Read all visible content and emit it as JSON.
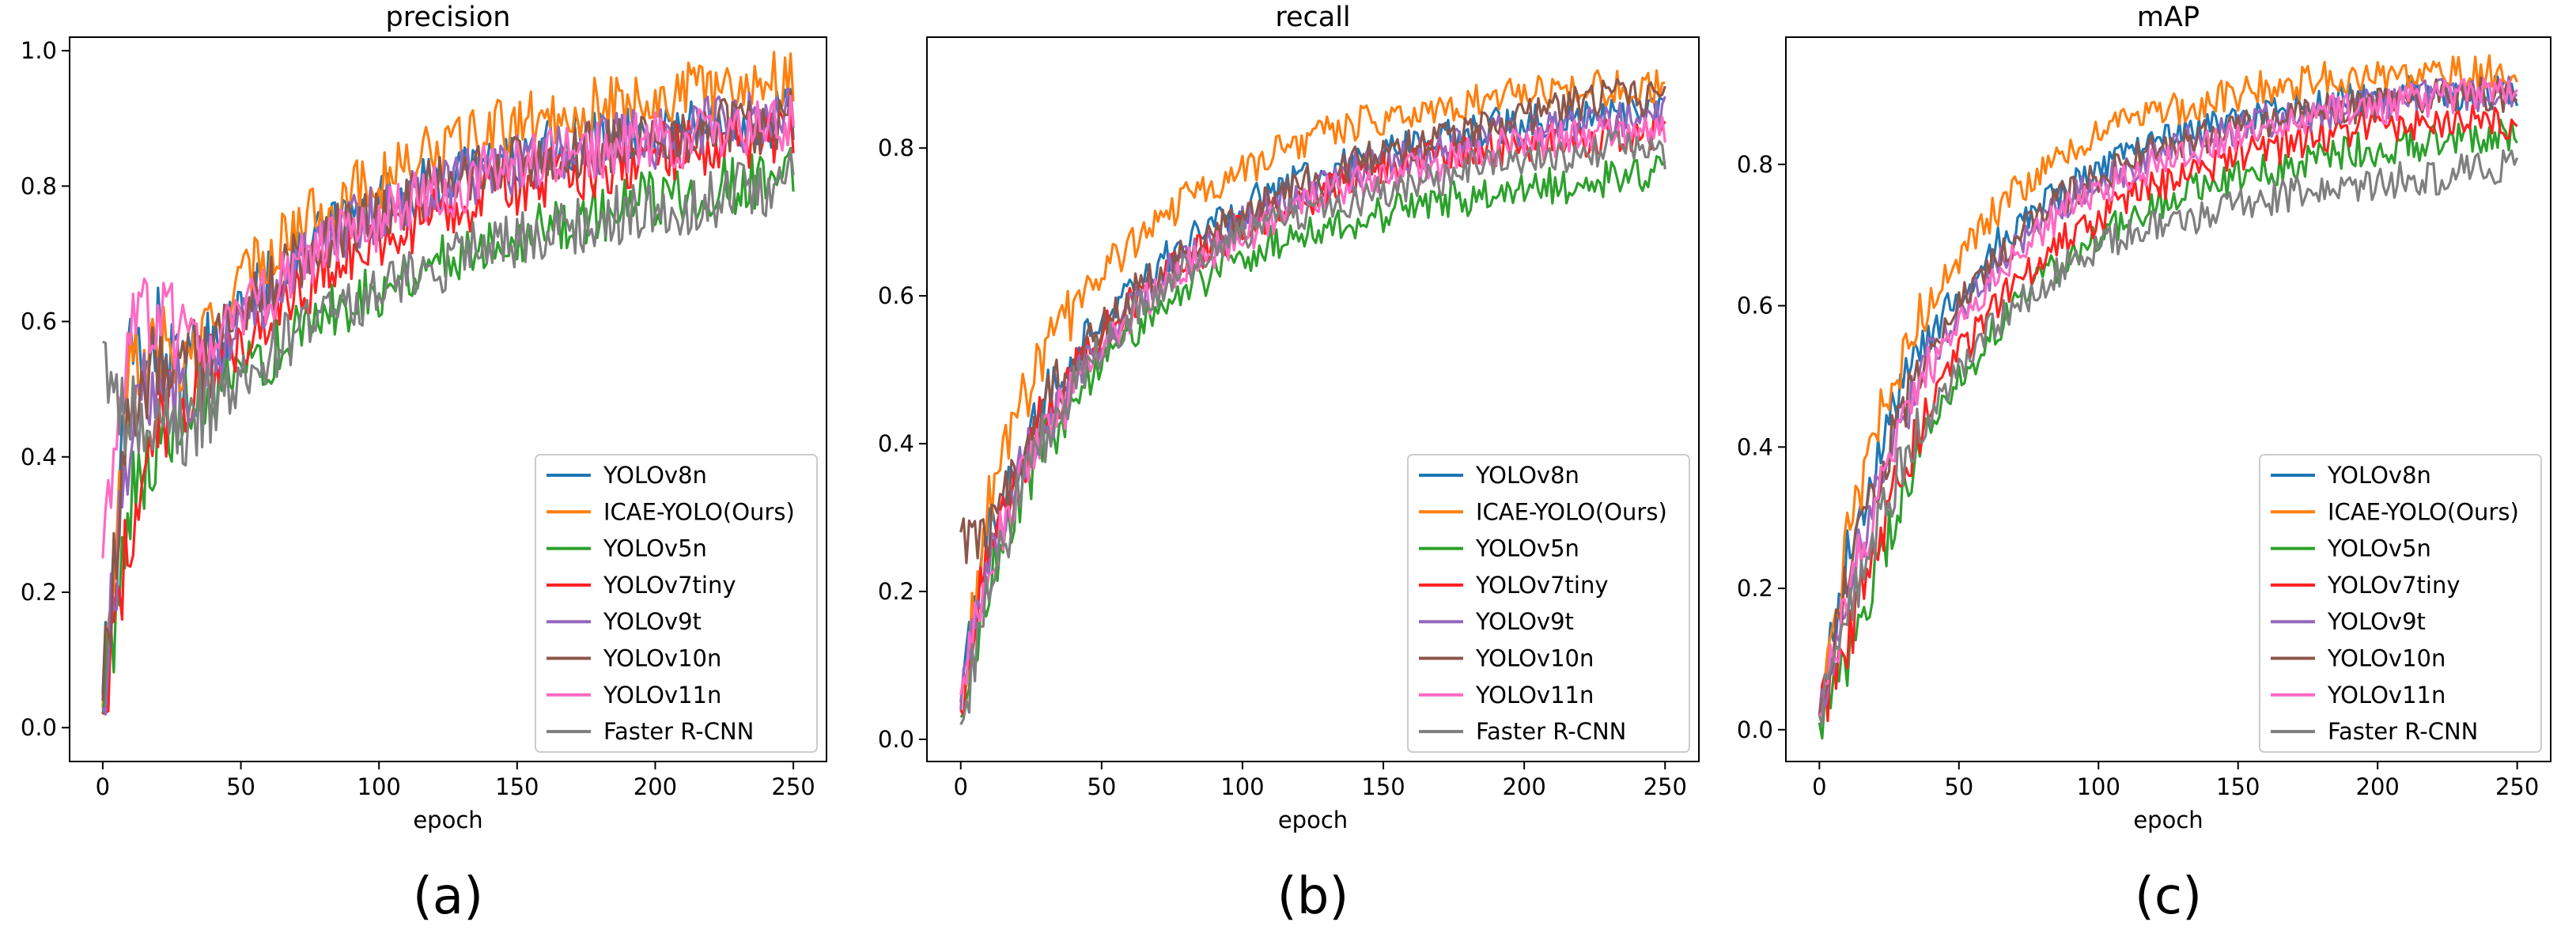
{
  "figure": {
    "series_styles": [
      {
        "name": "YOLOv8n",
        "color": "#1f77b4"
      },
      {
        "name": "ICAE-YOLO(Ours)",
        "color": "#ff7f0e"
      },
      {
        "name": "YOLOv5n",
        "color": "#2ca02c"
      },
      {
        "name": "YOLOv7tiny",
        "color": "#ff2020"
      },
      {
        "name": "YOLOv9t",
        "color": "#9467bd"
      },
      {
        "name": "YOLOv10n",
        "color": "#8c564b"
      },
      {
        "name": "YOLOv11n",
        "color": "#ff69c4"
      },
      {
        "name": "Faster R-CNN",
        "color": "#7f7f7f"
      }
    ]
  },
  "chart_data": [
    {
      "type": "line",
      "panel_label": "(a)",
      "title": "precision",
      "xlabel": "epoch",
      "ylabel": "",
      "xlim": [
        -12,
        262
      ],
      "ylim": [
        -0.05,
        1.02
      ],
      "xticks": [
        0,
        50,
        100,
        150,
        200,
        250
      ],
      "xtick_labels": [
        "0",
        "50",
        "100",
        "150",
        "200",
        "250"
      ],
      "yticks": [
        0.0,
        0.2,
        0.4,
        0.6,
        0.8,
        1.0
      ],
      "ytick_labels": [
        "0.0",
        "0.2",
        "0.4",
        "0.6",
        "0.8",
        "1.0"
      ],
      "legend": "lower-right",
      "x": [
        0,
        10,
        20,
        30,
        40,
        50,
        60,
        70,
        80,
        90,
        100,
        110,
        120,
        130,
        140,
        150,
        160,
        170,
        180,
        190,
        200,
        210,
        220,
        230,
        240,
        250
      ],
      "series": [
        {
          "name": "YOLOv8n",
          "values": [
            0.05,
            0.55,
            0.58,
            0.52,
            0.55,
            0.62,
            0.66,
            0.7,
            0.73,
            0.75,
            0.77,
            0.79,
            0.8,
            0.82,
            0.83,
            0.84,
            0.85,
            0.86,
            0.87,
            0.87,
            0.88,
            0.89,
            0.89,
            0.9,
            0.9,
            0.91
          ]
        },
        {
          "name": "ICAE-YOLO(Ours)",
          "values": [
            0.03,
            0.52,
            0.56,
            0.53,
            0.58,
            0.66,
            0.7,
            0.74,
            0.77,
            0.79,
            0.81,
            0.83,
            0.85,
            0.86,
            0.88,
            0.89,
            0.9,
            0.91,
            0.92,
            0.92,
            0.93,
            0.94,
            0.94,
            0.95,
            0.96,
            0.96
          ]
        },
        {
          "name": "YOLOv5n",
          "values": [
            0.02,
            0.35,
            0.42,
            0.45,
            0.48,
            0.52,
            0.55,
            0.58,
            0.61,
            0.63,
            0.65,
            0.67,
            0.69,
            0.7,
            0.72,
            0.73,
            0.74,
            0.75,
            0.76,
            0.77,
            0.78,
            0.79,
            0.8,
            0.8,
            0.81,
            0.82
          ]
        },
        {
          "name": "YOLOv7tiny",
          "values": [
            0.02,
            0.3,
            0.45,
            0.48,
            0.52,
            0.57,
            0.61,
            0.64,
            0.67,
            0.7,
            0.72,
            0.74,
            0.76,
            0.77,
            0.79,
            0.8,
            0.81,
            0.82,
            0.83,
            0.84,
            0.85,
            0.85,
            0.86,
            0.86,
            0.87,
            0.87
          ]
        },
        {
          "name": "YOLOv9t",
          "values": [
            0.03,
            0.45,
            0.52,
            0.5,
            0.54,
            0.6,
            0.64,
            0.68,
            0.71,
            0.74,
            0.76,
            0.78,
            0.79,
            0.81,
            0.82,
            0.83,
            0.84,
            0.85,
            0.86,
            0.87,
            0.87,
            0.88,
            0.89,
            0.89,
            0.9,
            0.9
          ]
        },
        {
          "name": "YOLOv10n",
          "values": [
            0.04,
            0.48,
            0.55,
            0.52,
            0.56,
            0.61,
            0.65,
            0.69,
            0.72,
            0.74,
            0.76,
            0.78,
            0.8,
            0.81,
            0.82,
            0.83,
            0.84,
            0.85,
            0.86,
            0.86,
            0.87,
            0.88,
            0.88,
            0.89,
            0.89,
            0.9
          ]
        },
        {
          "name": "YOLOv11n",
          "values": [
            0.25,
            0.6,
            0.62,
            0.55,
            0.57,
            0.61,
            0.64,
            0.68,
            0.71,
            0.73,
            0.75,
            0.77,
            0.79,
            0.8,
            0.82,
            0.83,
            0.84,
            0.85,
            0.85,
            0.86,
            0.87,
            0.87,
            0.88,
            0.88,
            0.89,
            0.89
          ]
        },
        {
          "name": "Faster R-CNN",
          "values": [
            0.57,
            0.45,
            0.42,
            0.45,
            0.48,
            0.52,
            0.55,
            0.58,
            0.61,
            0.63,
            0.65,
            0.67,
            0.68,
            0.7,
            0.71,
            0.72,
            0.73,
            0.74,
            0.75,
            0.76,
            0.77,
            0.77,
            0.78,
            0.79,
            0.8,
            0.81
          ]
        }
      ]
    },
    {
      "type": "line",
      "panel_label": "(b)",
      "title": "recall",
      "xlabel": "epoch",
      "ylabel": "",
      "xlim": [
        -12,
        262
      ],
      "ylim": [
        -0.03,
        0.95
      ],
      "xticks": [
        0,
        50,
        100,
        150,
        200,
        250
      ],
      "xtick_labels": [
        "0",
        "50",
        "100",
        "150",
        "200",
        "250"
      ],
      "yticks": [
        0.0,
        0.2,
        0.4,
        0.6,
        0.8
      ],
      "ytick_labels": [
        "0.0",
        "0.2",
        "0.4",
        "0.6",
        "0.8"
      ],
      "legend": "lower-right",
      "x": [
        0,
        10,
        20,
        30,
        40,
        50,
        60,
        70,
        80,
        90,
        100,
        110,
        120,
        130,
        140,
        150,
        160,
        170,
        180,
        190,
        200,
        210,
        220,
        230,
        240,
        250
      ],
      "series": [
        {
          "name": "YOLOv8n",
          "values": [
            0.05,
            0.28,
            0.38,
            0.46,
            0.52,
            0.57,
            0.61,
            0.64,
            0.67,
            0.7,
            0.72,
            0.74,
            0.76,
            0.77,
            0.78,
            0.79,
            0.8,
            0.81,
            0.82,
            0.83,
            0.83,
            0.84,
            0.84,
            0.85,
            0.85,
            0.86
          ]
        },
        {
          "name": "ICAE-YOLO(Ours)",
          "values": [
            0.05,
            0.32,
            0.44,
            0.52,
            0.58,
            0.63,
            0.67,
            0.7,
            0.73,
            0.75,
            0.77,
            0.79,
            0.81,
            0.82,
            0.83,
            0.84,
            0.85,
            0.86,
            0.86,
            0.87,
            0.87,
            0.88,
            0.88,
            0.88,
            0.88,
            0.88
          ]
        },
        {
          "name": "YOLOv5n",
          "values": [
            0.03,
            0.22,
            0.32,
            0.4,
            0.46,
            0.51,
            0.55,
            0.58,
            0.61,
            0.63,
            0.65,
            0.67,
            0.68,
            0.69,
            0.7,
            0.71,
            0.72,
            0.73,
            0.73,
            0.74,
            0.74,
            0.75,
            0.75,
            0.76,
            0.76,
            0.77
          ]
        },
        {
          "name": "YOLOv7tiny",
          "values": [
            0.04,
            0.26,
            0.36,
            0.44,
            0.5,
            0.55,
            0.59,
            0.62,
            0.65,
            0.67,
            0.69,
            0.71,
            0.73,
            0.74,
            0.76,
            0.77,
            0.78,
            0.79,
            0.79,
            0.8,
            0.8,
            0.81,
            0.81,
            0.82,
            0.82,
            0.82
          ]
        },
        {
          "name": "YOLOv9t",
          "values": [
            0.04,
            0.25,
            0.35,
            0.43,
            0.49,
            0.54,
            0.58,
            0.62,
            0.65,
            0.67,
            0.7,
            0.72,
            0.74,
            0.75,
            0.77,
            0.78,
            0.79,
            0.8,
            0.81,
            0.82,
            0.82,
            0.83,
            0.83,
            0.84,
            0.84,
            0.85
          ]
        },
        {
          "name": "YOLOv10n",
          "values": [
            0.28,
            0.27,
            0.37,
            0.45,
            0.51,
            0.56,
            0.6,
            0.63,
            0.66,
            0.69,
            0.71,
            0.73,
            0.75,
            0.76,
            0.78,
            0.79,
            0.8,
            0.81,
            0.82,
            0.83,
            0.84,
            0.85,
            0.86,
            0.87,
            0.87,
            0.86
          ]
        },
        {
          "name": "YOLOv11n",
          "values": [
            0.06,
            0.24,
            0.34,
            0.41,
            0.48,
            0.53,
            0.57,
            0.61,
            0.64,
            0.66,
            0.68,
            0.7,
            0.72,
            0.74,
            0.75,
            0.76,
            0.77,
            0.78,
            0.79,
            0.8,
            0.81,
            0.81,
            0.82,
            0.82,
            0.83,
            0.83
          ]
        },
        {
          "name": "Faster R-CNN",
          "values": [
            0.02,
            0.2,
            0.32,
            0.41,
            0.48,
            0.53,
            0.57,
            0.61,
            0.64,
            0.66,
            0.68,
            0.7,
            0.71,
            0.72,
            0.73,
            0.74,
            0.75,
            0.76,
            0.77,
            0.78,
            0.78,
            0.79,
            0.79,
            0.8,
            0.8,
            0.79
          ]
        }
      ]
    },
    {
      "type": "line",
      "panel_label": "(c)",
      "title": "mAP",
      "xlabel": "epoch",
      "ylabel": "",
      "xlim": [
        -12,
        262
      ],
      "ylim": [
        -0.045,
        0.98
      ],
      "xticks": [
        0,
        50,
        100,
        150,
        200,
        250
      ],
      "xtick_labels": [
        "0",
        "50",
        "100",
        "150",
        "200",
        "250"
      ],
      "yticks": [
        0.0,
        0.2,
        0.4,
        0.6,
        0.8
      ],
      "ytick_labels": [
        "0.0",
        "0.2",
        "0.4",
        "0.6",
        "0.8"
      ],
      "legend": "lower-right",
      "x": [
        0,
        10,
        20,
        30,
        40,
        50,
        60,
        70,
        80,
        90,
        100,
        110,
        120,
        130,
        140,
        150,
        160,
        170,
        180,
        190,
        200,
        210,
        220,
        230,
        240,
        250
      ],
      "series": [
        {
          "name": "YOLOv8n",
          "values": [
            0.02,
            0.25,
            0.38,
            0.48,
            0.56,
            0.62,
            0.67,
            0.71,
            0.74,
            0.77,
            0.79,
            0.81,
            0.83,
            0.84,
            0.85,
            0.86,
            0.87,
            0.88,
            0.88,
            0.89,
            0.89,
            0.9,
            0.9,
            0.9,
            0.9,
            0.9
          ]
        },
        {
          "name": "ICAE-YOLO(Ours)",
          "values": [
            0.02,
            0.27,
            0.42,
            0.53,
            0.61,
            0.67,
            0.72,
            0.76,
            0.79,
            0.82,
            0.84,
            0.86,
            0.87,
            0.88,
            0.89,
            0.9,
            0.91,
            0.91,
            0.92,
            0.92,
            0.92,
            0.93,
            0.93,
            0.93,
            0.93,
            0.93
          ]
        },
        {
          "name": "YOLOv5n",
          "values": [
            0.01,
            0.1,
            0.22,
            0.33,
            0.42,
            0.49,
            0.55,
            0.6,
            0.64,
            0.67,
            0.7,
            0.72,
            0.74,
            0.76,
            0.77,
            0.78,
            0.79,
            0.8,
            0.81,
            0.82,
            0.82,
            0.83,
            0.83,
            0.84,
            0.84,
            0.84
          ]
        },
        {
          "name": "YOLOv7tiny",
          "values": [
            0.02,
            0.12,
            0.26,
            0.37,
            0.46,
            0.53,
            0.58,
            0.63,
            0.67,
            0.7,
            0.72,
            0.75,
            0.77,
            0.78,
            0.8,
            0.81,
            0.82,
            0.83,
            0.84,
            0.85,
            0.85,
            0.86,
            0.86,
            0.86,
            0.86,
            0.86
          ]
        },
        {
          "name": "YOLOv9t",
          "values": [
            0.02,
            0.2,
            0.34,
            0.45,
            0.53,
            0.59,
            0.64,
            0.69,
            0.72,
            0.75,
            0.77,
            0.79,
            0.81,
            0.83,
            0.84,
            0.85,
            0.86,
            0.87,
            0.87,
            0.88,
            0.89,
            0.89,
            0.9,
            0.9,
            0.9,
            0.9
          ]
        },
        {
          "name": "YOLOv10n",
          "values": [
            0.02,
            0.21,
            0.35,
            0.46,
            0.54,
            0.6,
            0.65,
            0.69,
            0.73,
            0.76,
            0.78,
            0.8,
            0.82,
            0.83,
            0.84,
            0.85,
            0.86,
            0.87,
            0.88,
            0.88,
            0.89,
            0.89,
            0.9,
            0.9,
            0.9,
            0.89
          ]
        },
        {
          "name": "YOLOv11n",
          "values": [
            0.02,
            0.18,
            0.32,
            0.43,
            0.51,
            0.57,
            0.62,
            0.67,
            0.71,
            0.74,
            0.76,
            0.78,
            0.8,
            0.82,
            0.83,
            0.84,
            0.85,
            0.86,
            0.87,
            0.88,
            0.88,
            0.89,
            0.89,
            0.9,
            0.9,
            0.9
          ]
        },
        {
          "name": "Faster R-CNN",
          "values": [
            0.02,
            0.16,
            0.28,
            0.38,
            0.45,
            0.51,
            0.56,
            0.6,
            0.63,
            0.66,
            0.68,
            0.7,
            0.71,
            0.72,
            0.73,
            0.74,
            0.75,
            0.76,
            0.76,
            0.77,
            0.77,
            0.78,
            0.78,
            0.79,
            0.79,
            0.8
          ]
        }
      ]
    }
  ]
}
